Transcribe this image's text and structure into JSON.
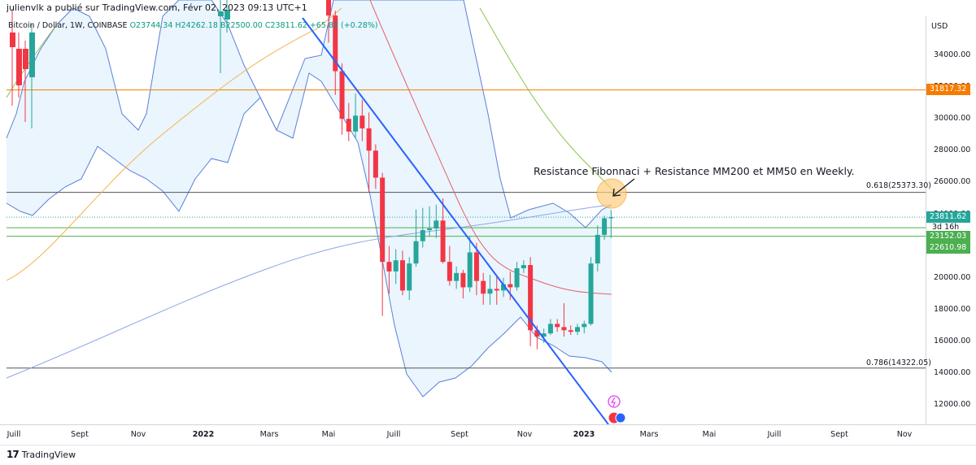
{
  "header": {
    "publisher": "julienvlk a publié sur TradingView.com, Févr 02, 2023 09:13 UTC+1"
  },
  "symbol_bar": {
    "symbol": "Bitcoin / Dollar, 1W, COINBASE",
    "open": "O23744.34",
    "high": "H24262.18",
    "low": "B22500.00",
    "close": "C23811.62",
    "change": "+65.82 (+0.28%)"
  },
  "annotation": "Resistance Fibonnaci + Resistance MM200 et MM50 en Weekly.",
  "currency": "USD",
  "brand": "TradingView",
  "price_labels": {
    "orange": "31817.32",
    "current": "23811.62",
    "countdown": "3d 16h",
    "green1": "23152.03",
    "green2": "22610.98"
  },
  "colors": {
    "up": "#26a69a",
    "down": "#f23645",
    "orange_line": "#f57c00",
    "trendline": "#2962ff",
    "bollinger": "#5b7fd9",
    "band_fill": "#e3f2fd",
    "ma_red": "#e5616b",
    "ma_green": "#8bc34a",
    "ma_orange": "#f7b24d",
    "ma_blue": "#8fa6e8",
    "green_level": "#4caf50",
    "highlight": "#ffcc80"
  },
  "chart_data": {
    "type": "candlestick",
    "title": "Bitcoin / Dollar, 1W, COINBASE",
    "ylabel": "USD",
    "ylim": [
      11000,
      37000
    ],
    "y_ticks": [
      12000,
      14000,
      16000,
      18000,
      20000,
      22000,
      24000,
      26000,
      28000,
      30000,
      32000,
      34000
    ],
    "y_tick_labels": [
      "12000.00",
      "14000.00",
      "16000.00",
      "18000.00",
      "20000.00",
      "22000.00",
      "24000.00",
      "26000.00",
      "28000.00",
      "30000.00",
      "32000.00",
      "34000.00"
    ],
    "x_tick_labels": [
      "Juill",
      "Sept",
      "Nov",
      "2022",
      "Mars",
      "Mai",
      "Juill",
      "Sept",
      "Nov",
      "2023",
      "Mars",
      "Mai",
      "Juill",
      "Sept",
      "Nov"
    ],
    "fibonacci_levels": [
      {
        "label": "0.618(25373.30)",
        "value": 25373.3
      },
      {
        "label": "0.786(14322.05)",
        "value": 14322.05
      }
    ],
    "horizontal_levels": [
      31817.32,
      23152.03,
      22610.98
    ],
    "current_price": 23811.62,
    "candles_2022_2023": [
      [
        39800,
        36500,
        40000,
        34800
      ],
      [
        36500,
        33000,
        36800,
        31500
      ],
      [
        33000,
        30000,
        33500,
        29000
      ],
      [
        30000,
        29200,
        31000,
        28600
      ],
      [
        29200,
        30200,
        31600,
        28800
      ],
      [
        30200,
        29400,
        31200,
        28600
      ],
      [
        29400,
        28000,
        30400,
        25400
      ],
      [
        28000,
        26300,
        28400,
        25600
      ],
      [
        26300,
        21000,
        26600,
        17600
      ],
      [
        21000,
        20400,
        22000,
        19000
      ],
      [
        20400,
        21100,
        21800,
        19600
      ],
      [
        21100,
        19200,
        21700,
        18900
      ],
      [
        19200,
        20900,
        21300,
        18600
      ],
      [
        20900,
        22300,
        24300,
        20700
      ],
      [
        22300,
        23000,
        24400,
        21900
      ],
      [
        23000,
        23100,
        24500,
        22600
      ],
      [
        23100,
        23600,
        24600,
        22500
      ],
      [
        23600,
        21000,
        25000,
        20900
      ],
      [
        21000,
        19800,
        22000,
        19500
      ],
      [
        19800,
        20300,
        20700,
        19300
      ],
      [
        20300,
        19400,
        20500,
        18700
      ],
      [
        19400,
        21600,
        22600,
        19100
      ],
      [
        21600,
        19800,
        22200,
        18900
      ],
      [
        19800,
        19000,
        20300,
        18300
      ],
      [
        19000,
        19300,
        20200,
        18300
      ],
      [
        19300,
        19200,
        20100,
        18300
      ],
      [
        19200,
        19600,
        20000,
        18800
      ],
      [
        19600,
        19400,
        20400,
        18600
      ],
      [
        19400,
        20600,
        21000,
        19200
      ],
      [
        20600,
        20800,
        21100,
        20300
      ],
      [
        20800,
        16700,
        21300,
        15700
      ],
      [
        16700,
        16300,
        17000,
        15500
      ],
      [
        16300,
        16500,
        16800,
        15900
      ],
      [
        16500,
        17100,
        17400,
        16400
      ],
      [
        17100,
        16900,
        17400,
        16600
      ],
      [
        16900,
        16700,
        18400,
        16300
      ],
      [
        16700,
        16600,
        17000,
        16400
      ],
      [
        16600,
        16900,
        17100,
        16400
      ],
      [
        16900,
        17100,
        17300,
        16500
      ],
      [
        17100,
        20900,
        21300,
        17000
      ],
      [
        20900,
        22700,
        23300,
        20400
      ],
      [
        22700,
        23744,
        23900,
        22400
      ],
      [
        23744,
        23811,
        24262,
        22500
      ]
    ]
  }
}
